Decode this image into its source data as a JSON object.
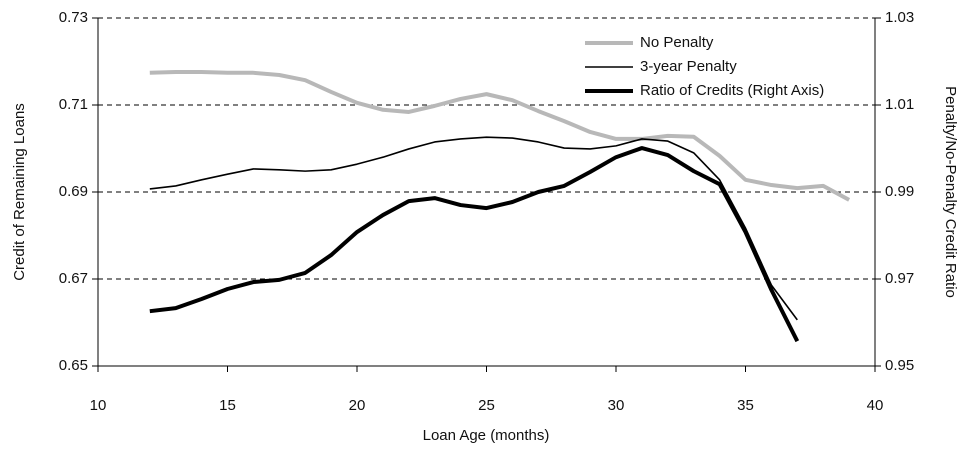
{
  "chart_data": {
    "type": "line",
    "xlabel": "Loan Age (months)",
    "ylabel": "Credit of Remaining Loans",
    "y2label": "Penalty/No-Penalty Credit Ratio",
    "xlim": [
      10,
      40
    ],
    "xticks": [
      10,
      15,
      20,
      25,
      30,
      35,
      40
    ],
    "ylim": [
      0.65,
      0.73
    ],
    "yticks": [
      0.65,
      0.67,
      0.69,
      0.71,
      0.73
    ],
    "y2lim": [
      0.95,
      1.03
    ],
    "y2ticks": [
      0.95,
      0.97,
      0.99,
      1.01,
      1.03
    ],
    "grid": true,
    "legend": "upper right",
    "series": [
      {
        "name": "No Penalty",
        "color": "#b8b8b8",
        "width": 4,
        "x": [
          12,
          13,
          14,
          15,
          16,
          17,
          18,
          19,
          20,
          21,
          22,
          23,
          24,
          25,
          26,
          27,
          28,
          29,
          30,
          31,
          32,
          33,
          34,
          35,
          36,
          37,
          38,
          39
        ],
        "values": [
          0.7174,
          0.7176,
          0.7176,
          0.7174,
          0.7174,
          0.7169,
          0.7157,
          0.713,
          0.7105,
          0.7089,
          0.7084,
          0.7098,
          0.7114,
          0.7125,
          0.7111,
          0.7086,
          0.7063,
          0.7038,
          0.7022,
          0.7022,
          0.7029,
          0.7027,
          0.6983,
          0.6928,
          0.6916,
          0.6909,
          0.6914,
          0.6882
        ]
      },
      {
        "name": "3-year Penalty",
        "color": "#000000",
        "width": 1.6,
        "x": [
          12,
          13,
          14,
          15,
          16,
          17,
          18,
          19,
          20,
          21,
          22,
          23,
          24,
          25,
          26,
          27,
          28,
          29,
          30,
          31,
          32,
          33,
          34,
          35,
          36,
          37
        ],
        "values": [
          0.6907,
          0.6914,
          0.6928,
          0.6941,
          0.6953,
          0.6951,
          0.6948,
          0.6951,
          0.6964,
          0.698,
          0.6999,
          0.7015,
          0.7022,
          0.7026,
          0.7024,
          0.7015,
          0.7001,
          0.6999,
          0.7006,
          0.7022,
          0.7017,
          0.699,
          0.6928,
          0.6817,
          0.6686,
          0.6606
        ]
      },
      {
        "name": "Ratio of Credits (Right Axis)",
        "color": "#000000",
        "width": 4,
        "axis": "y2",
        "x": [
          12,
          13,
          14,
          15,
          16,
          17,
          18,
          19,
          20,
          21,
          22,
          23,
          24,
          25,
          26,
          27,
          28,
          29,
          30,
          31,
          32,
          33,
          34,
          35,
          36,
          37
        ],
        "values": [
          0.9626,
          0.9633,
          0.9654,
          0.9677,
          0.9693,
          0.9698,
          0.9714,
          0.9755,
          0.9808,
          0.9847,
          0.9879,
          0.9886,
          0.987,
          0.9863,
          0.9877,
          0.99,
          0.9914,
          0.9946,
          0.998,
          1.0001,
          0.9985,
          0.9948,
          0.9918,
          0.9808,
          0.9675,
          0.9557
        ]
      }
    ]
  }
}
